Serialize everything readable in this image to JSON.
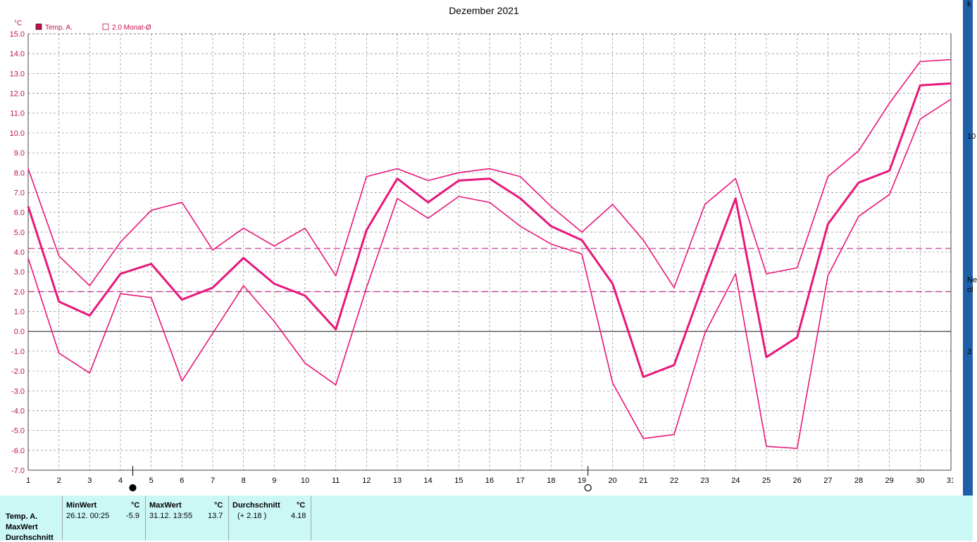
{
  "chart_data": {
    "type": "line",
    "title": "Dezember 2021",
    "ylabel": "°C",
    "x": [
      1,
      2,
      3,
      4,
      5,
      6,
      7,
      8,
      9,
      10,
      11,
      12,
      13,
      14,
      15,
      16,
      17,
      18,
      19,
      20,
      21,
      22,
      23,
      24,
      25,
      26,
      27,
      28,
      29,
      30,
      31
    ],
    "xlim": [
      1,
      31
    ],
    "ylim": [
      -7.0,
      15.0
    ],
    "y_ticks": [
      "15.0",
      "14.0",
      "13.0",
      "12.0",
      "11.0",
      "10.0",
      "9.0",
      "8.0",
      "7.0",
      "6.0",
      "5.0",
      "4.0",
      "3.0",
      "2.0",
      "1.0",
      "0.0",
      "-1.0",
      "-2.0",
      "-3.0",
      "-4.0",
      "-5.0",
      "-6.0",
      "-7.0"
    ],
    "grid": true,
    "legend": [
      {
        "label": "Temp. A.",
        "filled": true
      },
      {
        "label": "2.0 Monat-Ø",
        "filled": false
      }
    ],
    "series": [
      {
        "name": "Temp. A.",
        "role": "mean",
        "values": [
          6.3,
          1.5,
          0.8,
          2.9,
          3.4,
          1.6,
          2.2,
          3.7,
          2.4,
          1.8,
          0.1,
          5.1,
          7.7,
          6.5,
          7.6,
          7.7,
          6.7,
          5.3,
          4.6,
          2.4,
          -2.3,
          -1.7,
          2.6,
          6.7,
          -1.3,
          -0.3,
          5.4,
          7.5,
          8.1,
          12.4,
          12.5
        ]
      },
      {
        "role": "max",
        "values": [
          8.2,
          3.8,
          2.3,
          4.5,
          6.1,
          6.5,
          4.1,
          5.2,
          4.3,
          5.2,
          2.8,
          7.8,
          8.2,
          7.6,
          8.0,
          8.2,
          7.8,
          6.3,
          5.0,
          6.4,
          4.6,
          2.2,
          6.4,
          7.7,
          2.9,
          3.2,
          7.8,
          9.1,
          11.5,
          13.6,
          13.7
        ]
      },
      {
        "role": "min",
        "values": [
          3.7,
          -1.1,
          -2.1,
          1.9,
          1.7,
          -2.5,
          -0.1,
          2.3,
          0.5,
          -1.6,
          -2.7,
          2.2,
          6.7,
          5.7,
          6.8,
          6.5,
          5.3,
          4.4,
          3.9,
          -2.6,
          -5.4,
          -5.2,
          -0.1,
          2.9,
          -5.8,
          -5.9,
          2.8,
          5.8,
          6.9,
          10.7,
          11.7
        ]
      }
    ],
    "reference_lines": [
      4.18,
      2.0
    ],
    "moon_phases": [
      {
        "day": 4.4,
        "phase": "new"
      },
      {
        "day": 19.2,
        "phase": "full"
      }
    ],
    "colors": {
      "series": "#e8177a",
      "zero": "#444444",
      "reference": "#c0328c",
      "grid": "#999999"
    }
  },
  "stats": {
    "rows": [
      "Temp. A.",
      "MaxWert",
      "Durchschnitt"
    ],
    "min": {
      "header": "MinWert",
      "unit": "°C",
      "time": "26.12.  00:25",
      "value": "-5.9"
    },
    "max": {
      "header": "MaxWert",
      "unit": "°C",
      "time": "31.12.  13:55",
      "value": "13.7"
    },
    "avg": {
      "header": "Durchschnitt",
      "unit": "°C",
      "diff": "(+ 2.18 )",
      "value": "4.18"
    }
  },
  "side_fragments": [
    "k",
    "10",
    "Ne",
    "ol",
    "3"
  ]
}
